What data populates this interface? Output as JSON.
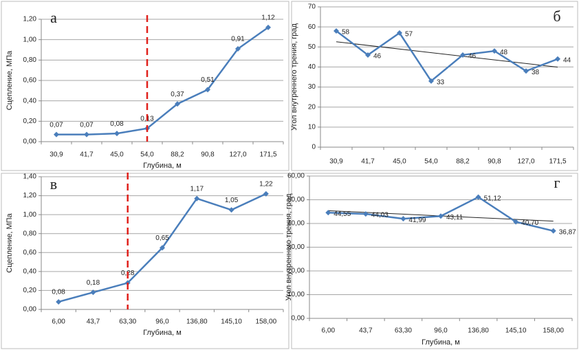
{
  "chart_data": [
    {
      "type": "line",
      "panel_label": "а",
      "xlabel": "Глубина, м",
      "ylabel": "Сцепление, МПа",
      "categories": [
        "30,9",
        "41,7",
        "45,0",
        "54,0",
        "88,2",
        "90,8",
        "127,0",
        "171,5"
      ],
      "series": [
        {
          "color": "#4a7ebb",
          "values": [
            0.07,
            0.07,
            0.08,
            0.13,
            0.37,
            0.51,
            0.91,
            1.12
          ],
          "value_labels": [
            "0,07",
            "0,07",
            "0,08",
            "0,13",
            "0,37",
            "0,51",
            "0,91",
            "1,12"
          ]
        }
      ],
      "ylim": [
        0,
        1.2
      ],
      "yticks": [
        {
          "value": 0,
          "label": "0,00"
        },
        {
          "value": 0.2,
          "label": "0,20"
        },
        {
          "value": 0.4,
          "label": "0,40"
        },
        {
          "value": 0.6,
          "label": "0,60"
        },
        {
          "value": 0.8,
          "label": "0,80"
        },
        {
          "value": 1.0,
          "label": "1,00"
        },
        {
          "value": 1.2,
          "label": "1,20"
        }
      ],
      "grid": true,
      "vline": "54,0",
      "vline_color": "#e0201b"
    },
    {
      "type": "line",
      "panel_label": "б",
      "ylabel": "Угол внутреннего трения, град",
      "categories": [
        "30,9",
        "41,7",
        "45,0",
        "54,0",
        "88,2",
        "90,8",
        "127,0",
        "171,5"
      ],
      "series": [
        {
          "color": "#4a7ebb",
          "values": [
            58,
            46,
            57,
            33,
            46,
            48,
            38,
            44
          ]
        }
      ],
      "ylim": [
        0,
        70
      ],
      "yticks": [
        0,
        10,
        20,
        30,
        40,
        50,
        60,
        70
      ],
      "grid": true,
      "trendline": true
    },
    {
      "type": "line",
      "panel_label": "в",
      "xlabel": "Глубина, м",
      "ylabel": "Сцепление, МПа",
      "categories": [
        "6,00",
        "43,7",
        "63,30",
        "96,0",
        "136,80",
        "145,10",
        "158,00"
      ],
      "series": [
        {
          "color": "#4a7ebb",
          "values": [
            0.08,
            0.18,
            0.28,
            0.65,
            1.17,
            1.05,
            1.22
          ],
          "value_labels": [
            "0,08",
            "0,18",
            "0,28",
            "0,65",
            "1,17",
            "1,05",
            "1,22"
          ]
        }
      ],
      "ylim": [
        0,
        1.4
      ],
      "yticks": [
        {
          "value": 0,
          "label": "0,00"
        },
        {
          "value": 0.2,
          "label": "0,20"
        },
        {
          "value": 0.4,
          "label": "0,40"
        },
        {
          "value": 0.6,
          "label": "0,60"
        },
        {
          "value": 0.8,
          "label": "0,80"
        },
        {
          "value": 1.0,
          "label": "1,00"
        },
        {
          "value": 1.2,
          "label": "1,20"
        },
        {
          "value": 1.4,
          "label": "1,40"
        }
      ],
      "grid": true,
      "vline": "63,30",
      "vline_color": "#e0201b"
    },
    {
      "type": "line",
      "panel_label": "г",
      "xlabel": "Глубина, м",
      "ylabel": "Угол внутреннего трения, град",
      "categories": [
        "6,00",
        "43,7",
        "63,30",
        "96,0",
        "136,80",
        "145,10",
        "158,00"
      ],
      "series": [
        {
          "color": "#4a7ebb",
          "values": [
            44.55,
            44.03,
            41.99,
            43.11,
            51.12,
            40.7,
            36.87
          ],
          "value_labels": [
            "44,55",
            "44,03",
            "41,99",
            "43,11",
            "51,12",
            "40,70",
            "36,87"
          ]
        }
      ],
      "ylim": [
        0,
        60
      ],
      "yticks": [
        {
          "value": 0,
          "label": "0,00"
        },
        {
          "value": 10,
          "label": "10,00"
        },
        {
          "value": 20,
          "label": "20,00"
        },
        {
          "value": 30,
          "label": "30,00"
        },
        {
          "value": 40,
          "label": "40,00"
        },
        {
          "value": 50,
          "label": "50,00"
        },
        {
          "value": 60,
          "label": "60,00"
        }
      ],
      "grid": true,
      "trendline": true
    }
  ]
}
